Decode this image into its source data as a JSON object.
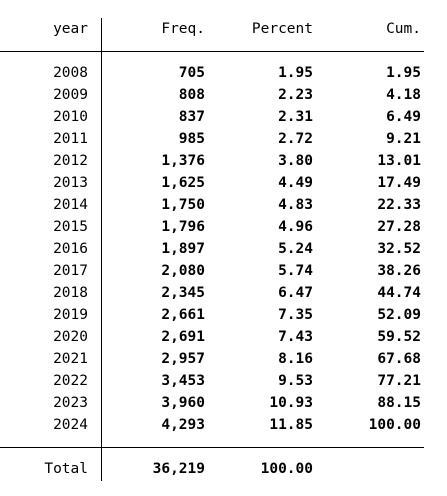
{
  "table": {
    "headers": {
      "year": "year",
      "freq": "Freq.",
      "percent": "Percent",
      "cum": "Cum."
    },
    "rows": [
      {
        "year": "2008",
        "freq": "705",
        "percent": "1.95",
        "cum": "1.95"
      },
      {
        "year": "2009",
        "freq": "808",
        "percent": "2.23",
        "cum": "4.18"
      },
      {
        "year": "2010",
        "freq": "837",
        "percent": "2.31",
        "cum": "6.49"
      },
      {
        "year": "2011",
        "freq": "985",
        "percent": "2.72",
        "cum": "9.21"
      },
      {
        "year": "2012",
        "freq": "1,376",
        "percent": "3.80",
        "cum": "13.01"
      },
      {
        "year": "2013",
        "freq": "1,625",
        "percent": "4.49",
        "cum": "17.49"
      },
      {
        "year": "2014",
        "freq": "1,750",
        "percent": "4.83",
        "cum": "22.33"
      },
      {
        "year": "2015",
        "freq": "1,796",
        "percent": "4.96",
        "cum": "27.28"
      },
      {
        "year": "2016",
        "freq": "1,897",
        "percent": "5.24",
        "cum": "32.52"
      },
      {
        "year": "2017",
        "freq": "2,080",
        "percent": "5.74",
        "cum": "38.26"
      },
      {
        "year": "2018",
        "freq": "2,345",
        "percent": "6.47",
        "cum": "44.74"
      },
      {
        "year": "2019",
        "freq": "2,661",
        "percent": "7.35",
        "cum": "52.09"
      },
      {
        "year": "2020",
        "freq": "2,691",
        "percent": "7.43",
        "cum": "59.52"
      },
      {
        "year": "2021",
        "freq": "2,957",
        "percent": "8.16",
        "cum": "67.68"
      },
      {
        "year": "2022",
        "freq": "3,453",
        "percent": "9.53",
        "cum": "77.21"
      },
      {
        "year": "2023",
        "freq": "3,960",
        "percent": "10.93",
        "cum": "88.15"
      },
      {
        "year": "2024",
        "freq": "4,293",
        "percent": "11.85",
        "cum": "100.00"
      }
    ],
    "total": {
      "label": "Total",
      "freq": "36,219",
      "percent": "100.00"
    }
  }
}
